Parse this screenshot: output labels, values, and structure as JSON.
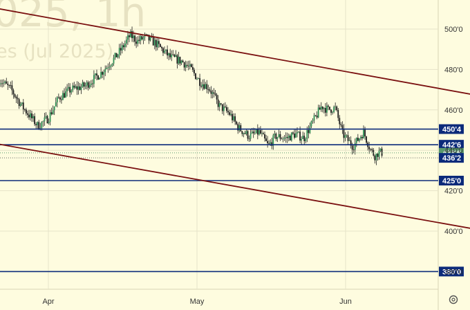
{
  "watermark": {
    "line1": "025, 1h",
    "line2": "es (Jul 2025)"
  },
  "settings_icon": "gear-icon",
  "colors": {
    "background": "#fefcdf",
    "grid": "#e6e3c8",
    "candle": "#1c1c1c",
    "level_line": "#0b2a7a",
    "trend_line": "#7a1010",
    "last_price_badge": "#5a9a6e"
  },
  "chart_data": {
    "type": "candlestick",
    "title": "",
    "xlabel": "",
    "ylabel": "",
    "y_axis": {
      "position": "right",
      "ylim": [
        360,
        510
      ],
      "ticks": [
        {
          "value": 380,
          "label": "380'0"
        },
        {
          "value": 400,
          "label": "400'0"
        },
        {
          "value": 420,
          "label": "420'0"
        },
        {
          "value": 440,
          "label": "440'0"
        },
        {
          "value": 460,
          "label": "460'0"
        },
        {
          "value": 480,
          "label": "480'0"
        },
        {
          "value": 500,
          "label": "500'0"
        }
      ]
    },
    "x_axis": {
      "ticks": [
        {
          "t": 0.0,
          "label": "Apr"
        },
        {
          "t": 1.0,
          "label": "May"
        },
        {
          "t": 2.0,
          "label": "Jun"
        }
      ]
    },
    "price_path": [
      [
        -0.33,
        475
      ],
      [
        -0.25,
        470
      ],
      [
        -0.18,
        462
      ],
      [
        -0.07,
        452
      ],
      [
        0.0,
        456
      ],
      [
        0.07,
        466
      ],
      [
        0.15,
        470
      ],
      [
        0.25,
        472
      ],
      [
        0.35,
        478
      ],
      [
        0.45,
        486
      ],
      [
        0.5,
        491
      ],
      [
        0.55,
        497
      ],
      [
        0.6,
        494
      ],
      [
        0.65,
        496
      ],
      [
        0.72,
        493
      ],
      [
        0.82,
        486
      ],
      [
        0.9,
        484
      ],
      [
        0.96,
        480
      ],
      [
        1.02,
        474
      ],
      [
        1.08,
        471
      ],
      [
        1.15,
        462
      ],
      [
        1.22,
        458
      ],
      [
        1.28,
        451
      ],
      [
        1.35,
        447
      ],
      [
        1.42,
        449
      ],
      [
        1.48,
        442
      ],
      [
        1.53,
        447
      ],
      [
        1.6,
        446
      ],
      [
        1.66,
        448
      ],
      [
        1.72,
        446
      ],
      [
        1.78,
        454
      ],
      [
        1.84,
        462
      ],
      [
        1.88,
        460
      ],
      [
        1.93,
        461
      ],
      [
        1.98,
        448
      ],
      [
        2.05,
        442
      ],
      [
        2.12,
        449
      ],
      [
        2.17,
        440
      ],
      [
        2.2,
        437
      ],
      [
        2.22,
        439
      ],
      [
        2.25,
        438.75
      ]
    ],
    "horizontal_levels": [
      {
        "value": 450.5,
        "label": "450'4",
        "badge": true
      },
      {
        "value": 442.75,
        "label": "442'6",
        "badge": true
      },
      {
        "value": 425.0,
        "label": "425'0",
        "badge": true
      },
      {
        "value": 380.0,
        "label": "380'0",
        "badge": true
      }
    ],
    "dotted_levels": [
      {
        "value": 438.75,
        "label": "438'6",
        "kind": "last_price"
      },
      {
        "value": 436.25,
        "label": "436'2",
        "kind": "secondary"
      }
    ],
    "trend_lines": [
      {
        "from": [
          -0.33,
          510
        ],
        "to": [
          2.87,
          467.4
        ]
      },
      {
        "from": [
          -0.33,
          443
        ],
        "to": [
          2.87,
          401
        ]
      }
    ],
    "grid": true
  }
}
